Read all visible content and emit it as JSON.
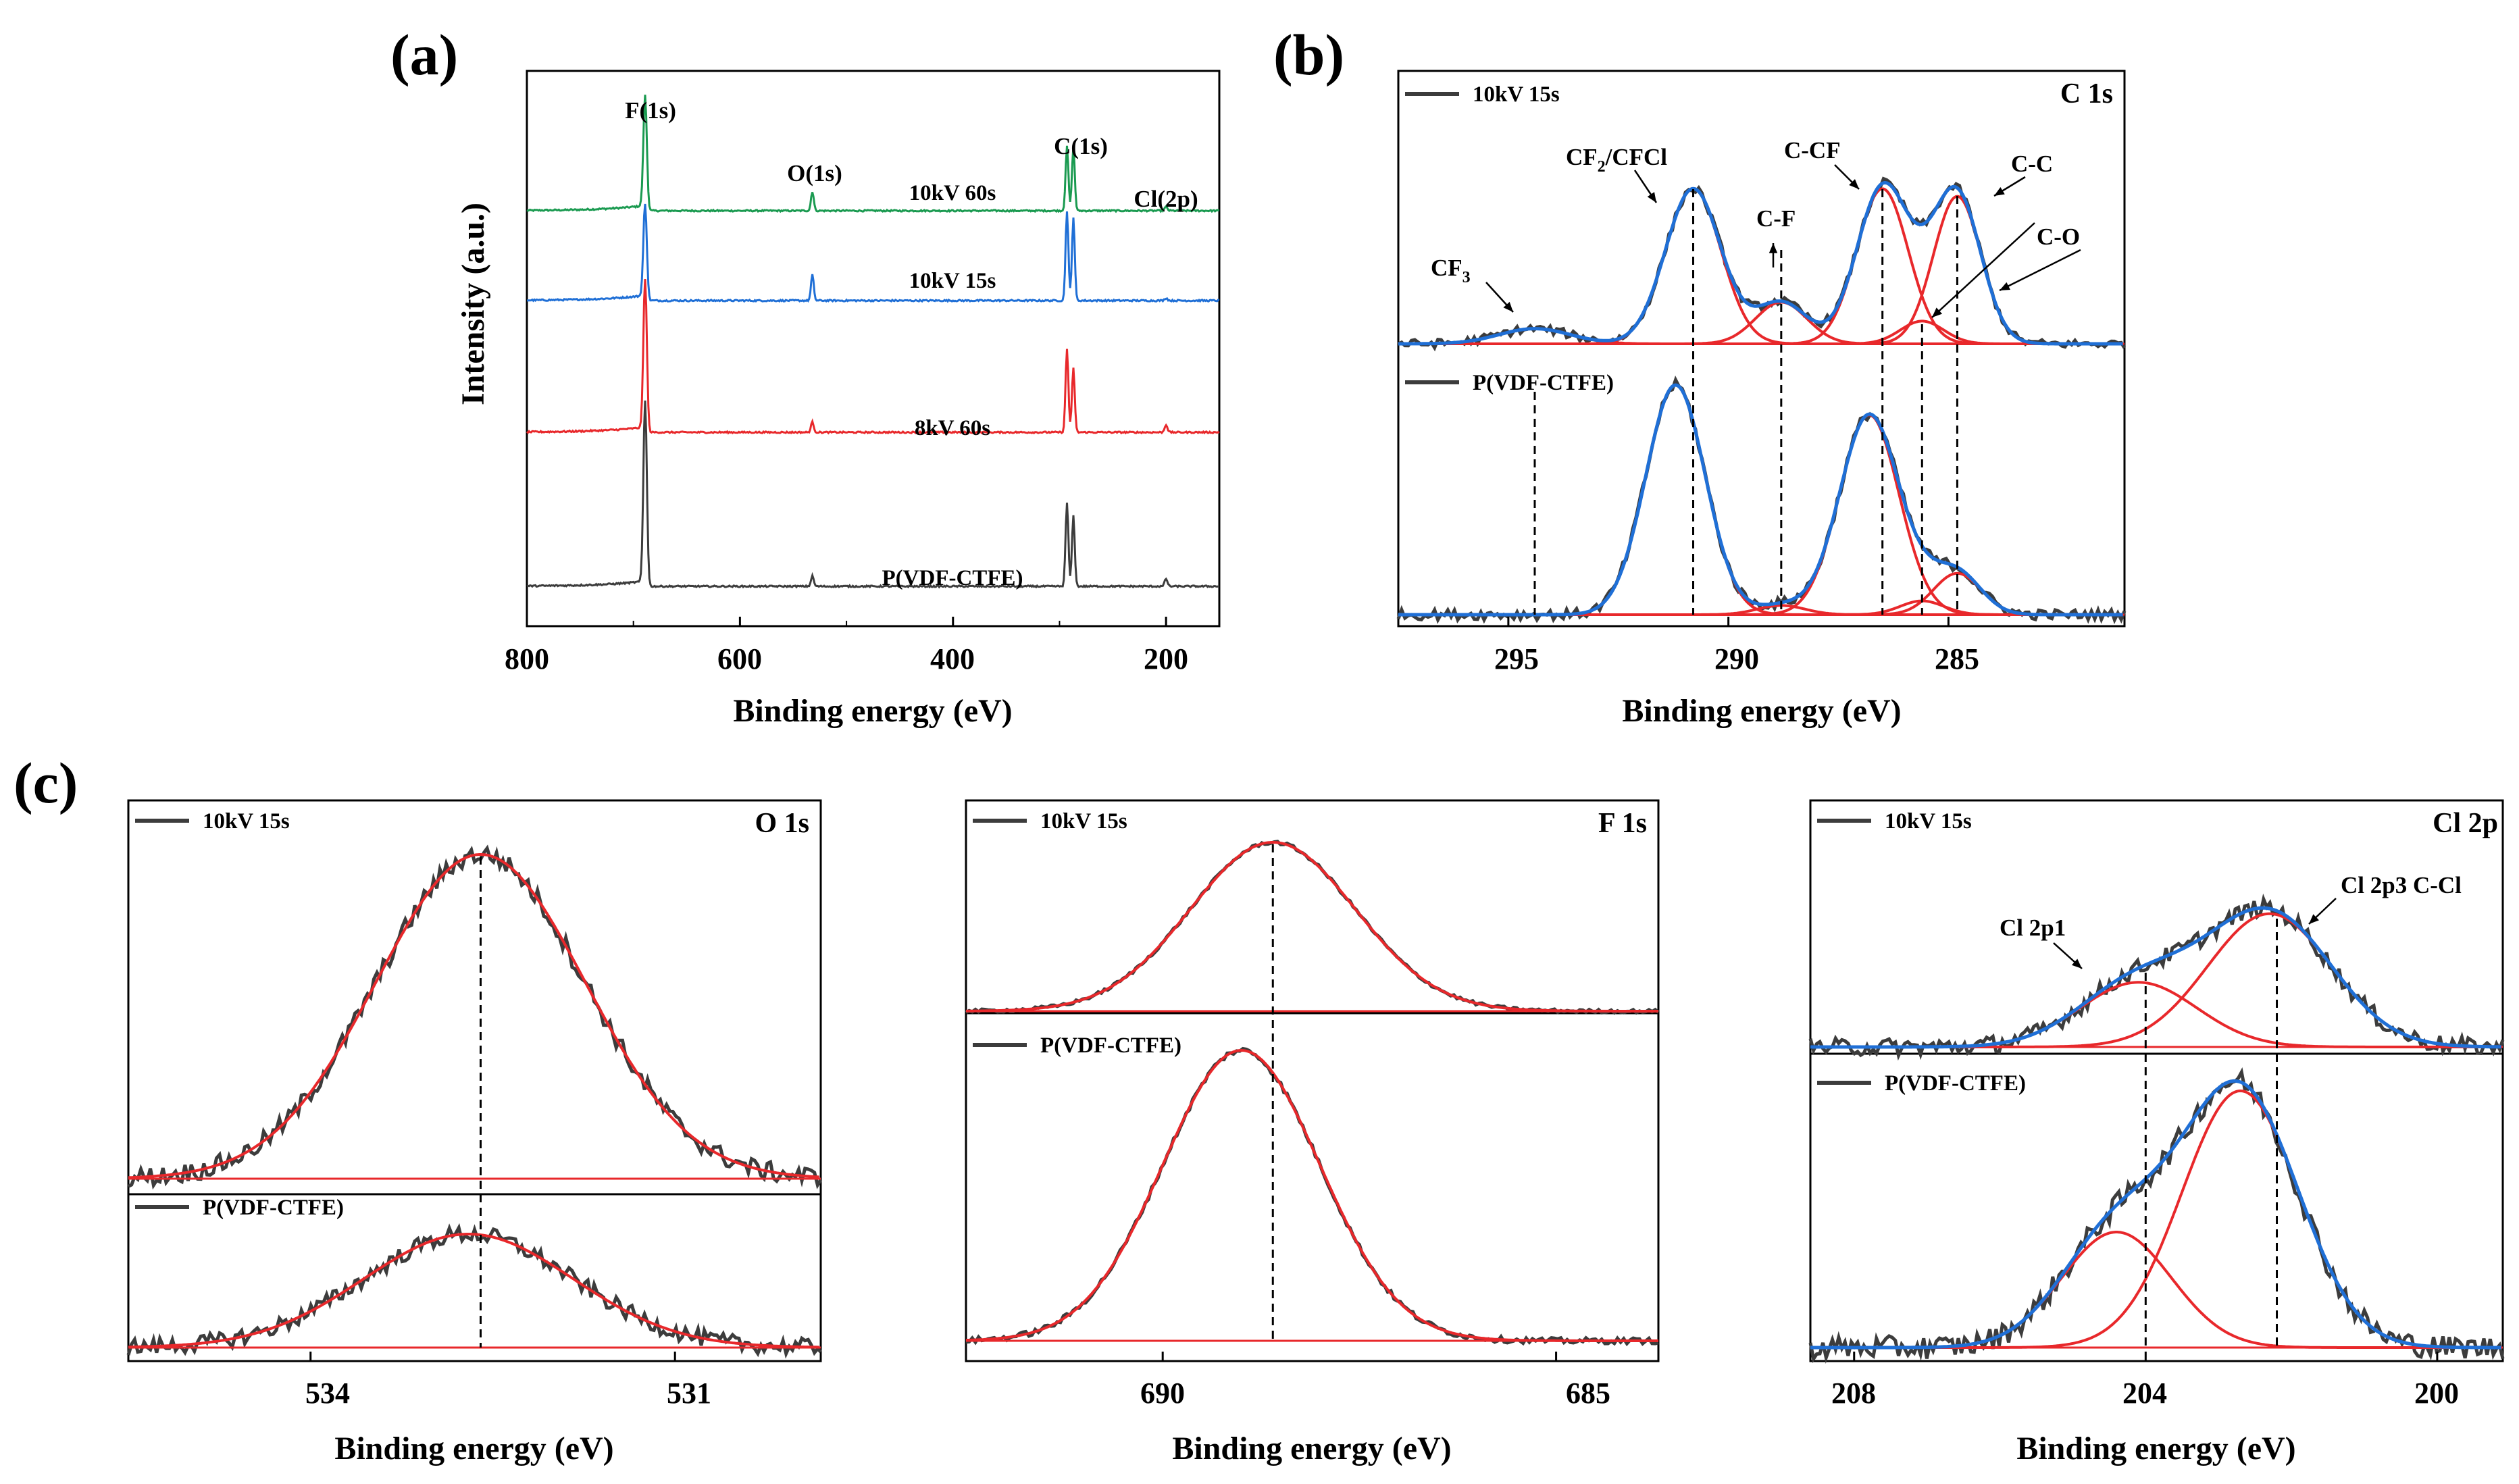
{
  "panel_labels": {
    "a": "(a)",
    "b": "(b)",
    "c": "(c)"
  },
  "colors": {
    "measured": "#3c3c3c",
    "fit": "#e8282b",
    "envelope": "#1f6fd6",
    "green": "#1a9a50",
    "blue": "#1f6fd6",
    "red": "#e8282b",
    "dark": "#3c3c3c"
  },
  "chart_data": [
    {
      "id": "a",
      "type": "line",
      "title": "",
      "xlabel": "Binding energy (eV)",
      "ylabel": "Intensity (a.u.)",
      "xlim": [
        800,
        150
      ],
      "xticks": [
        800,
        600,
        400,
        200
      ],
      "y_scale": "arbitrary, stacked offsets",
      "grid": false,
      "peaks": [
        {
          "label": "F(1s)",
          "x": 689
        },
        {
          "label": "O(1s)",
          "x": 532
        },
        {
          "label": "C(1s)",
          "x": 290
        },
        {
          "label": "Cl(2p)",
          "x": 200
        }
      ],
      "series": [
        {
          "name": "10kV 60s",
          "color": "green",
          "peaks": [
            [
              689,
              0.9
            ],
            [
              532,
              0.15
            ],
            [
              293,
              0.5
            ],
            [
              287,
              0.5
            ],
            [
              200,
              0.03
            ]
          ]
        },
        {
          "name": "10kV 15s",
          "color": "blue",
          "peaks": [
            [
              689,
              0.75
            ],
            [
              532,
              0.2
            ],
            [
              293,
              0.7
            ],
            [
              287,
              0.65
            ],
            [
              200,
              0.02
            ]
          ]
        },
        {
          "name": "8kV 60s",
          "color": "red",
          "peaks": [
            [
              689,
              1.2
            ],
            [
              532,
              0.08
            ],
            [
              293,
              0.65
            ],
            [
              287,
              0.5
            ],
            [
              200,
              0.06
            ]
          ]
        },
        {
          "name": "P(VDF-CTFE)",
          "color": "dark",
          "peaks": [
            [
              689,
              1.45
            ],
            [
              532,
              0.08
            ],
            [
              293,
              0.65
            ],
            [
              287,
              0.55
            ],
            [
              200,
              0.06
            ]
          ]
        }
      ]
    },
    {
      "id": "b",
      "type": "line",
      "title": "C 1s",
      "xlabel": "Binding energy (eV)",
      "xlim": [
        297.5,
        281
      ],
      "xticks": [
        295,
        290,
        285
      ],
      "legend": [
        "10kV 15s",
        "P(VDF-CTFE)"
      ],
      "grid": false,
      "components": [
        {
          "label": "CF3",
          "x": 294.4
        },
        {
          "label": "CF2/CFCl",
          "x": 290.8
        },
        {
          "label": "C-F",
          "x": 288.8
        },
        {
          "label": "C-CF",
          "x": 286.5
        },
        {
          "label": "C-O",
          "x": 285.6
        },
        {
          "label": "C-C",
          "x": 284.8
        }
      ],
      "top_fit": [
        [
          294.4,
          0.08,
          0.9
        ],
        [
          290.8,
          0.82,
          0.7
        ],
        [
          288.8,
          0.22,
          0.65
        ],
        [
          286.5,
          0.82,
          0.65
        ],
        [
          285.6,
          0.12,
          0.55
        ],
        [
          284.8,
          0.78,
          0.6
        ]
      ],
      "bottom_fit": [
        [
          294.4,
          0.0,
          0.9
        ],
        [
          291.2,
          1.0,
          0.75
        ],
        [
          288.8,
          0.04,
          0.6
        ],
        [
          286.8,
          0.87,
          0.75
        ],
        [
          285.6,
          0.06,
          0.55
        ],
        [
          284.8,
          0.18,
          0.6
        ]
      ],
      "dashed_lines": [
        294.4,
        290.8,
        288.8,
        286.5,
        285.6,
        284.8
      ]
    },
    {
      "id": "c1",
      "type": "line",
      "title": "O 1s",
      "xlabel": "Binding energy (eV)",
      "xlim": [
        535.5,
        529.8
      ],
      "xticks": [
        534,
        531
      ],
      "tick_labels": [
        "534",
        "531"
      ],
      "legend": [
        "10kV 15s",
        "P(VDF-CTFE)"
      ],
      "grid": false,
      "top_fit": [
        [
          532.6,
          1.0,
          1.05
        ]
      ],
      "bottom_fit": [
        [
          532.7,
          0.4,
          1.05
        ]
      ],
      "dashed_lines": [
        532.6
      ]
    },
    {
      "id": "c2",
      "type": "line",
      "title": "F 1s",
      "xlabel": "Binding energy (eV)",
      "xlim": [
        692.5,
        683.7
      ],
      "xticks": [
        690,
        685
      ],
      "tick_labels": [
        "690",
        "685"
      ],
      "legend": [
        "10kV 15s",
        "P(VDF-CTFE)"
      ],
      "grid": false,
      "top_fit": [
        [
          688.6,
          1.0,
          1.1
        ]
      ],
      "bottom_fit": [
        [
          689.0,
          1.0,
          1.05
        ]
      ],
      "dashed_lines": [
        688.6
      ]
    },
    {
      "id": "c3",
      "type": "line",
      "title": "Cl 2p",
      "xlabel": "Binding energy (eV)",
      "xlim": [
        208.6,
        199.1
      ],
      "xticks": [
        208,
        204,
        200
      ],
      "tick_labels": [
        "208",
        "204",
        "200"
      ],
      "legend": [
        "10kV 15s",
        "P(VDF-CTFE)"
      ],
      "grid": false,
      "components": [
        {
          "label": "Cl 2p1",
          "x": 204.0
        },
        {
          "label": "Cl 2p3 C-Cl",
          "x": 202.2
        }
      ],
      "top_fit": [
        [
          204.1,
          0.33,
          0.8
        ],
        [
          202.3,
          0.68,
          0.85
        ]
      ],
      "bottom_fit": [
        [
          204.4,
          0.45,
          0.75
        ],
        [
          202.7,
          1.0,
          0.8
        ]
      ],
      "dashed_lines": [
        204.0,
        202.2
      ]
    }
  ],
  "panel_a": {
    "ylabel": "Intensity (a.u.)",
    "xlabel": "Binding energy (eV)",
    "ticks": [
      "800",
      "600",
      "400",
      "200"
    ],
    "peak_labels": {
      "f1s": "F(1s)",
      "o1s": "O(1s)",
      "c1s": "C(1s)",
      "cl2p": "Cl(2p)"
    },
    "series_labels": [
      "10kV 60s",
      "10kV 15s",
      "8kV 60s",
      "P(VDF-CTFE)"
    ]
  },
  "panel_b": {
    "title": "C 1s",
    "xlabel": "Binding energy (eV)",
    "ticks": [
      "295",
      "290",
      "285"
    ],
    "legend_top": "10kV 15s",
    "legend_bottom": "P(VDF-CTFE)",
    "labels": {
      "cf3": "CF",
      "cf3_sub": "3",
      "cf2": "CF",
      "cf2_sub": "2",
      "cf2_rest": "/CFCl",
      "cf": "C-F",
      "ccf": "C-CF",
      "cc": "C-C",
      "co": "C-O"
    }
  },
  "panel_c": {
    "o1s": {
      "title": "O 1s",
      "xlabel": "Binding energy (eV)",
      "legend_top": "10kV 15s",
      "legend_bottom": "P(VDF-CTFE)",
      "ticks": [
        "534",
        "531"
      ]
    },
    "f1s": {
      "title": "F 1s",
      "xlabel": "Binding energy (eV)",
      "legend_top": "10kV 15s",
      "legend_bottom": "P(VDF-CTFE)",
      "ticks": [
        "690",
        "685"
      ]
    },
    "cl2p": {
      "title": "Cl 2p",
      "xlabel": "Binding energy (eV)",
      "legend_top": "10kV 15s",
      "legend_bottom": "P(VDF-CTFE)",
      "ticks": [
        "208",
        "204",
        "200"
      ],
      "label_p1": "Cl 2p1",
      "label_p3": "Cl 2p3 C-Cl"
    }
  }
}
